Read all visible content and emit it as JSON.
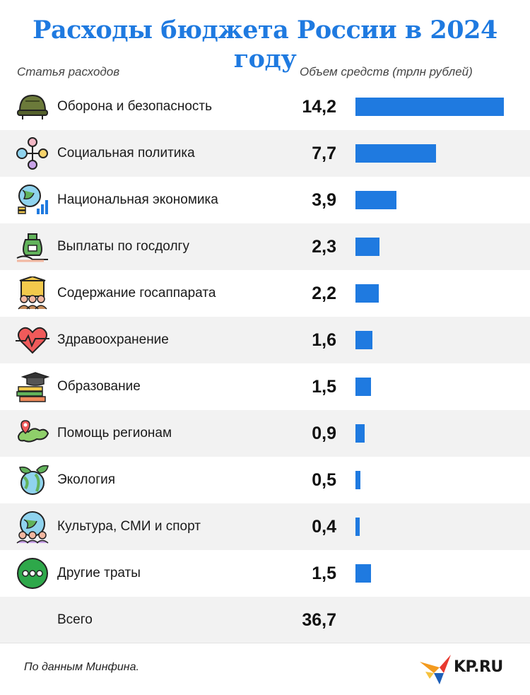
{
  "title": "Расходы бюджета России в 2024 году",
  "col_left": "Статья расходов",
  "col_right": "Объем средств (трлн рублей)",
  "chart_data": {
    "type": "bar",
    "orientation": "horizontal",
    "title": "Расходы бюджета России в 2024 году",
    "xlabel": "Объем средств (трлн рублей)",
    "ylabel": "Статья расходов",
    "categories": [
      "Оборона и безопасность",
      "Социальная политика",
      "Национальная экономика",
      "Выплаты по госдолгу",
      "Содержание госаппарата",
      "Здравоохранение",
      "Образование",
      "Помощь регионам",
      "Экология",
      "Культура, СМИ и спорт",
      "Другие траты"
    ],
    "values": [
      14.2,
      7.7,
      3.9,
      2.3,
      2.2,
      1.6,
      1.5,
      0.9,
      0.5,
      0.4,
      1.5
    ],
    "value_labels": [
      "14,2",
      "7,7",
      "3,9",
      "2,3",
      "2,2",
      "1,6",
      "1,5",
      "0,9",
      "0,5",
      "0,4",
      "1,5"
    ],
    "icons": [
      "helmet-icon",
      "social-network-icon",
      "globe-economy-icon",
      "money-bag-hand-icon",
      "government-staff-icon",
      "heart-pulse-icon",
      "books-graduation-icon",
      "russia-map-pin-icon",
      "eco-globe-icon",
      "culture-globe-people-icon",
      "more-dots-icon"
    ],
    "total_label": "Всего",
    "total_value": "36,7",
    "bar_color": "#1f7ae0"
  },
  "footnote": "По данным Минфина.",
  "logo_text": "KP.RU"
}
